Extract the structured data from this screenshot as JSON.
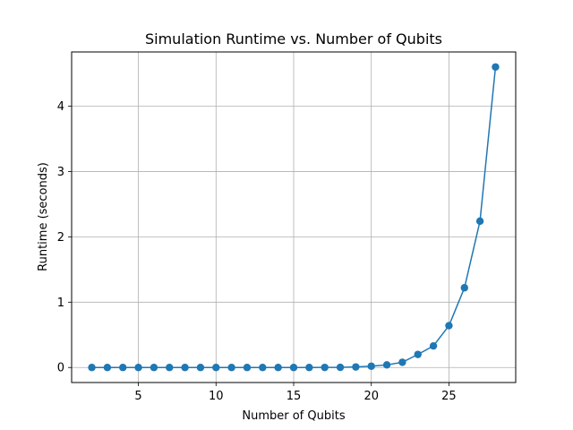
{
  "chart_data": {
    "type": "line",
    "title": "Simulation Runtime vs. Number of Qubits",
    "xlabel": "Number of Qubits",
    "ylabel": "Runtime (seconds)",
    "xlim": [
      0.7,
      29.3
    ],
    "ylim": [
      -0.23,
      4.83
    ],
    "xticks": [
      5,
      10,
      15,
      20,
      25
    ],
    "yticks": [
      0,
      1,
      2,
      3,
      4
    ],
    "grid": true,
    "legend": "none",
    "colors": {
      "series": "#1f77b4",
      "grid": "#b0b0b0",
      "axes": "#000000"
    },
    "series": [
      {
        "x": [
          2,
          3,
          4,
          5,
          6,
          7,
          8,
          9,
          10,
          11,
          12,
          13,
          14,
          15,
          16,
          17,
          18,
          19,
          20,
          21,
          22,
          23,
          24,
          25,
          26,
          27,
          28
        ],
        "y": [
          0.0,
          0.0,
          0.0,
          0.0,
          0.0,
          0.0,
          0.0,
          0.0,
          0.0,
          0.0,
          0.0,
          0.0,
          0.0,
          0.0,
          0.0,
          0.001,
          0.002,
          0.008,
          0.02,
          0.04,
          0.08,
          0.2,
          0.33,
          0.64,
          1.22,
          2.24,
          4.6
        ]
      }
    ]
  }
}
